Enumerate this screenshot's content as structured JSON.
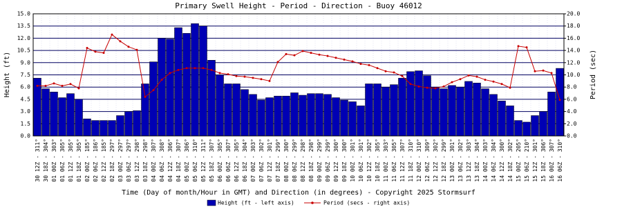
{
  "chart_data": {
    "type": "bar-line",
    "title": "Primary Swell Height - Period - Direction - Buoy 46012",
    "x_label": "Time (Day of month/Hour in GMT) and Direction (in degrees) - Copyright 2025 Stormsurf",
    "y_label": "Height (ft)",
    "y2_label": "Period (sec)",
    "categories": [
      "30 12Z",
      "30 18Z",
      "01 00Z",
      "01 06Z",
      "01 12Z",
      "01 18Z",
      "02 00Z",
      "02 06Z",
      "02 12Z",
      "02 18Z",
      "03 00Z",
      "03 06Z",
      "03 12Z",
      "03 18Z",
      "04 00Z",
      "04 06Z",
      "04 12Z",
      "04 18Z",
      "05 00Z",
      "05 06Z",
      "05 12Z",
      "05 18Z",
      "06 00Z",
      "06 06Z",
      "06 12Z",
      "06 18Z",
      "07 00Z",
      "07 06Z",
      "07 12Z",
      "07 18Z",
      "08 00Z",
      "08 06Z",
      "08 12Z",
      "08 18Z",
      "09 00Z",
      "09 06Z",
      "09 12Z",
      "09 18Z",
      "10 00Z",
      "10 06Z",
      "10 12Z",
      "10 18Z",
      "11 00Z",
      "11 06Z",
      "11 12Z",
      "11 18Z",
      "12 00Z",
      "12 06Z",
      "12 12Z",
      "12 18Z",
      "13 00Z",
      "13 06Z",
      "13 12Z",
      "13 18Z",
      "14 00Z",
      "14 06Z",
      "14 12Z",
      "14 18Z",
      "15 00Z",
      "15 06Z",
      "15 12Z",
      "15 18Z",
      "16 00Z",
      "16 06Z"
    ],
    "directions": [
      "311°",
      "304°",
      "303°",
      "305°",
      "305°",
      "305°",
      "185°",
      "186°",
      "185°",
      "297°",
      "297°",
      "297°",
      "298°",
      "298°",
      "307°",
      "308°",
      "306°",
      "307°",
      "306°",
      "310°",
      "311°",
      "307°",
      "305°",
      "307°",
      "305°",
      "304°",
      "303°",
      "302°",
      "301°",
      "299°",
      "300°",
      "299°",
      "298°",
      "298°",
      "299°",
      "299°",
      "300°",
      "300°",
      "301°",
      "301°",
      "302°",
      "305°",
      "303°",
      "305°",
      "307°",
      "310°",
      "310°",
      "309°",
      "302°",
      "299°",
      "301°",
      "302°",
      "303°",
      "304°",
      "303°",
      "304°",
      "300°",
      "302°",
      "205°",
      "210°",
      "301°",
      "306°",
      "307°",
      "310°"
    ],
    "series": [
      {
        "name": "Height (ft - left axis)",
        "color": "#0000b4",
        "axis": "y",
        "values": [
          7.1,
          5.8,
          5.4,
          4.7,
          5.2,
          4.5,
          2.1,
          1.9,
          1.9,
          1.9,
          2.5,
          3.0,
          3.1,
          6.4,
          9.1,
          12.0,
          11.9,
          13.3,
          12.6,
          13.8,
          13.5,
          9.3,
          7.5,
          6.4,
          6.4,
          5.7,
          5.1,
          4.4,
          4.7,
          4.9,
          4.9,
          5.3,
          5.0,
          5.2,
          5.2,
          5.1,
          4.7,
          4.4,
          4.2,
          3.7,
          6.4,
          6.4,
          6.0,
          6.3,
          7.1,
          7.9,
          8.0,
          7.4,
          6.0,
          5.8,
          6.2,
          6.0,
          6.7,
          6.5,
          5.8,
          5.1,
          4.3,
          3.7,
          1.9,
          1.7,
          2.5,
          3.0,
          5.4,
          8.3
        ]
      },
      {
        "name": "Period (secs - right axis)",
        "color": "#c80000",
        "axis": "y2",
        "values": [
          8.2,
          8.2,
          8.6,
          8.2,
          8.5,
          7.8,
          14.4,
          13.8,
          13.6,
          16.6,
          15.5,
          14.6,
          14.1,
          6.4,
          7.5,
          9.2,
          10.3,
          10.8,
          11.1,
          11.1,
          11.1,
          10.8,
          10.3,
          10.1,
          9.8,
          9.7,
          9.5,
          9.3,
          9.0,
          12.1,
          13.4,
          13.2,
          13.9,
          13.6,
          13.3,
          13.1,
          12.8,
          12.5,
          12.2,
          11.8,
          11.6,
          11.1,
          10.6,
          10.4,
          9.8,
          8.5,
          8.1,
          7.9,
          7.8,
          8.1,
          8.8,
          9.3,
          9.9,
          9.7,
          9.2,
          8.9,
          8.5,
          7.9,
          14.7,
          14.5,
          10.6,
          10.7,
          10.3,
          5.9
        ]
      }
    ],
    "ylim": [
      0,
      15
    ],
    "yticks": [
      {
        "value": 0,
        "label": "0.0"
      },
      {
        "value": 1.5,
        "label": "1.5"
      },
      {
        "value": 3,
        "label": "3.0"
      },
      {
        "value": 4.5,
        "label": "4.5"
      },
      {
        "value": 6,
        "label": "6.0"
      },
      {
        "value": 7.5,
        "label": "7.5"
      },
      {
        "value": 9,
        "label": "9.0"
      },
      {
        "value": 10.5,
        "label": "10.5"
      },
      {
        "value": 12,
        "label": "12.0"
      },
      {
        "value": 13.5,
        "label": "13.5"
      },
      {
        "value": 15,
        "label": "15.0"
      }
    ],
    "y2lim": [
      0,
      20
    ],
    "y2ticks": [
      {
        "value": 0,
        "label": "0.0"
      },
      {
        "value": 2,
        "label": "2.0"
      },
      {
        "value": 4,
        "label": "4.0"
      },
      {
        "value": 6,
        "label": "6.0"
      },
      {
        "value": 8,
        "label": "8.0"
      },
      {
        "value": 10,
        "label": "10.0"
      },
      {
        "value": 12,
        "label": "12.0"
      },
      {
        "value": 14,
        "label": "14.0"
      },
      {
        "value": 16,
        "label": "16.0"
      },
      {
        "value": 18,
        "label": "18.0"
      },
      {
        "value": 20,
        "label": "20.0"
      }
    ],
    "grid": true
  }
}
